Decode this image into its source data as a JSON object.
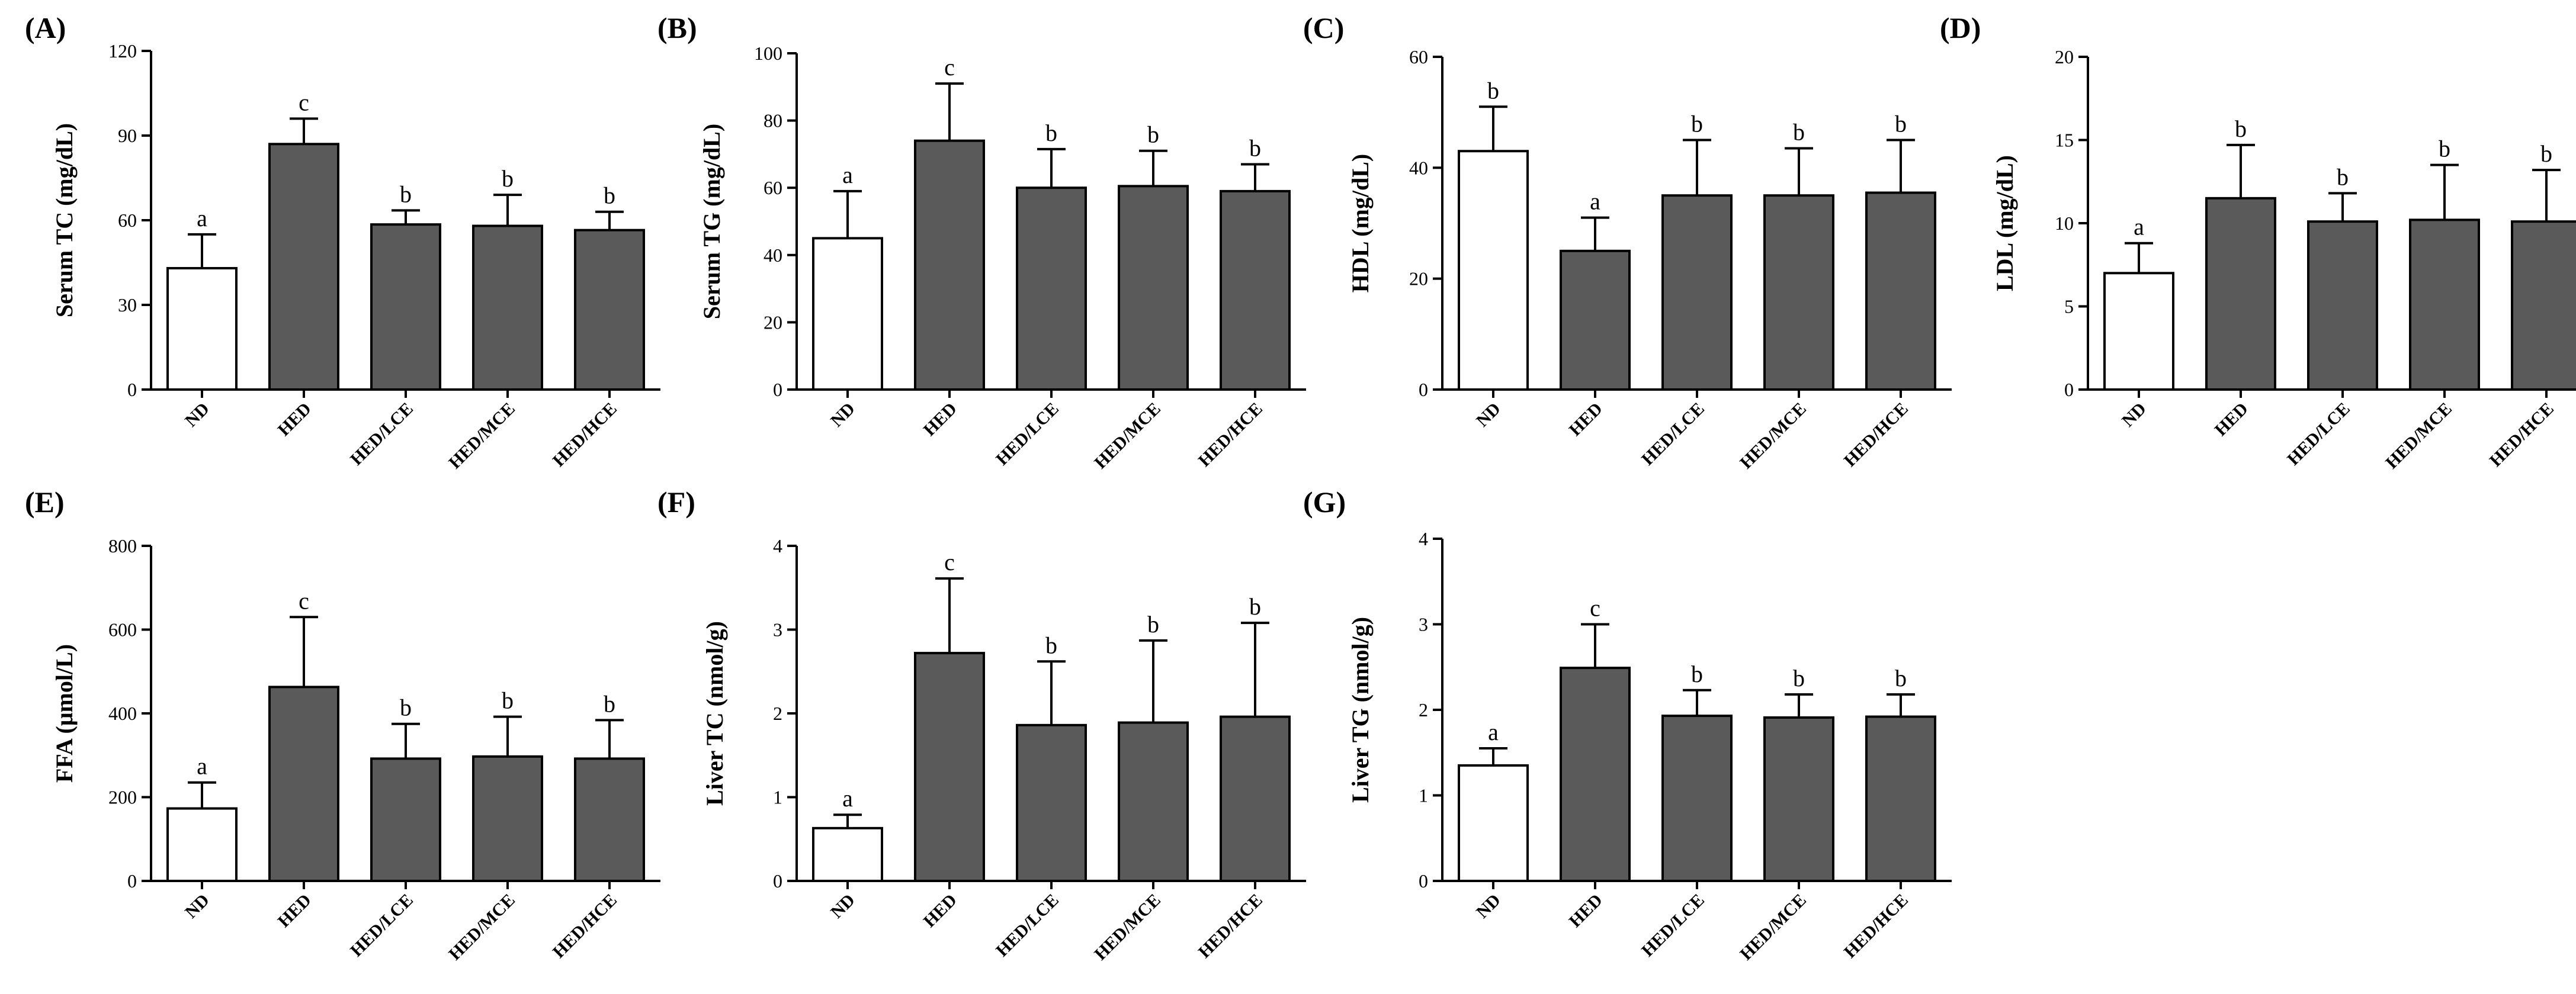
{
  "chart_data": [
    {
      "type": "bar",
      "panel": "(A)",
      "title": "",
      "xlabel": "",
      "ylabel": "Serum TC (mg/dL)",
      "ylim": [
        0,
        120
      ],
      "yticks": [
        0,
        30,
        60,
        90,
        120
      ],
      "categories": [
        "ND",
        "HED",
        "HED/LCE",
        "HED/MCE",
        "HED/HCE"
      ],
      "values": [
        43,
        87,
        58.5,
        58,
        56.5
      ],
      "errors": [
        12,
        9,
        5,
        11,
        6.5
      ],
      "letters": [
        "a",
        "c",
        "b",
        "b",
        "b"
      ],
      "grid": false
    },
    {
      "type": "bar",
      "panel": "(B)",
      "title": "",
      "xlabel": "",
      "ylabel": "Serum TG (mg/dL)",
      "ylim": [
        0,
        100
      ],
      "yticks": [
        0,
        20,
        40,
        60,
        80,
        100
      ],
      "categories": [
        "ND",
        "HED",
        "HED/LCE",
        "HED/MCE",
        "HED/HCE"
      ],
      "values": [
        45,
        74,
        60,
        60.5,
        59
      ],
      "errors": [
        14,
        17,
        11.5,
        10.5,
        8
      ],
      "letters": [
        "a",
        "c",
        "b",
        "b",
        "b"
      ],
      "grid": false
    },
    {
      "type": "bar",
      "panel": "(C)",
      "title": "",
      "xlabel": "",
      "ylabel": "HDL (mg/dL)",
      "ylim": [
        0,
        60
      ],
      "yticks": [
        0,
        20,
        40,
        60
      ],
      "categories": [
        "ND",
        "HED",
        "HED/LCE",
        "HED/MCE",
        "HED/HCE"
      ],
      "values": [
        43,
        25,
        35,
        35,
        35.5
      ],
      "errors": [
        8,
        6,
        10,
        8.5,
        9.5
      ],
      "letters": [
        "b",
        "a",
        "b",
        "b",
        "b"
      ],
      "grid": false
    },
    {
      "type": "bar",
      "panel": "(D)",
      "title": "",
      "xlabel": "",
      "ylabel": "LDL (mg/dL)",
      "ylim": [
        0,
        20
      ],
      "yticks": [
        0,
        5,
        10,
        15,
        20
      ],
      "categories": [
        "ND",
        "HED",
        "HED/LCE",
        "HED/MCE",
        "HED/HCE"
      ],
      "values": [
        7,
        11.5,
        10.1,
        10.2,
        10.1
      ],
      "errors": [
        1.8,
        3.2,
        1.7,
        3.3,
        3.1
      ],
      "letters": [
        "a",
        "b",
        "b",
        "b",
        "b"
      ],
      "grid": false
    },
    {
      "type": "bar",
      "panel": "(E)",
      "title": "",
      "xlabel": "",
      "ylabel": "FFA (μmol/L)",
      "ylim": [
        0,
        800
      ],
      "yticks": [
        0,
        200,
        400,
        600,
        800
      ],
      "categories": [
        "ND",
        "HED",
        "HED/LCE",
        "HED/MCE",
        "HED/HCE"
      ],
      "values": [
        173,
        463,
        292,
        297,
        292
      ],
      "errors": [
        62,
        167,
        83,
        95,
        92
      ],
      "letters": [
        "a",
        "c",
        "b",
        "b",
        "b"
      ],
      "grid": false
    },
    {
      "type": "bar",
      "panel": "(F)",
      "title": "",
      "xlabel": "",
      "ylabel": "Liver TC (nmol/g)",
      "ylim": [
        0,
        4
      ],
      "yticks": [
        0,
        1,
        2,
        3,
        4
      ],
      "categories": [
        "ND",
        "HED",
        "HED/LCE",
        "HED/MCE",
        "HED/HCE"
      ],
      "values": [
        0.63,
        2.72,
        1.86,
        1.89,
        1.96
      ],
      "errors": [
        0.16,
        0.89,
        0.76,
        0.98,
        1.12
      ],
      "letters": [
        "a",
        "c",
        "b",
        "b",
        "b"
      ],
      "grid": false
    },
    {
      "type": "bar",
      "panel": "(G)",
      "title": "",
      "xlabel": "",
      "ylabel": "Liver TG (nmol/g)",
      "ylim": [
        0,
        4
      ],
      "yticks": [
        0,
        1,
        2,
        3,
        4
      ],
      "categories": [
        "ND",
        "HED",
        "HED/LCE",
        "HED/MCE",
        "HED/HCE"
      ],
      "values": [
        1.35,
        2.49,
        1.93,
        1.91,
        1.92
      ],
      "errors": [
        0.2,
        0.51,
        0.3,
        0.27,
        0.26
      ],
      "letters": [
        "a",
        "c",
        "b",
        "b",
        "b"
      ],
      "grid": false
    }
  ],
  "colors": {
    "control_bar": "#ffffff",
    "treatment_bar": "#5a5a5a",
    "stroke": "#000000"
  }
}
